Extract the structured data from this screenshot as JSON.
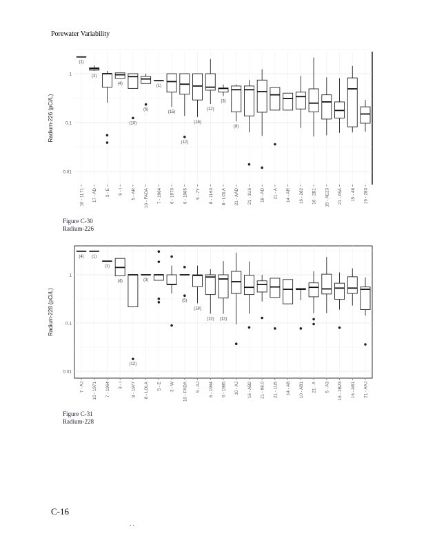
{
  "header": {
    "title": "Porewater Variability"
  },
  "figures": [
    {
      "number": "Figure C-30",
      "caption": "Radium-226"
    },
    {
      "number": "Figure C-31",
      "caption": "Radium-228"
    }
  ],
  "footer": {
    "page_number": "C-16",
    "marks": ". ."
  },
  "chart_data": [
    {
      "type": "box",
      "ylabel": "Radium-226 (pCi/L)",
      "yscale": "log",
      "ylim": [
        0.005,
        3
      ],
      "yticks": [
        "1",
        "0.1",
        "0.01"
      ],
      "grid": true,
      "categories": [
        "10 - 1L71",
        "17 - AD",
        "3 - E",
        "9 - I",
        "5 - AR",
        "10 - FADA",
        "7 - 1964",
        "6 - 1970",
        "6 - 1985",
        "5 - 7Y",
        "8 - 1L63",
        "8 - LOLA",
        "21 - AAD",
        "21 - 1U6",
        "18 - AD",
        "21 - A",
        "14 - AR",
        "16 - 282",
        "16 - 2B1",
        "15 - AE23",
        "21 - A5A",
        "15 - 48",
        "16 - 283"
      ],
      "boxes": [
        {
          "lo": 2.2,
          "q1": 2.2,
          "med": 2.2,
          "q3": 2.2,
          "hi": 2.2,
          "out": [],
          "n": "(1)"
        },
        {
          "lo": 1.14,
          "q1": 1.18,
          "med": 1.27,
          "q3": 1.32,
          "hi": 1.48,
          "out": [],
          "n": "(2)"
        },
        {
          "lo": 0.256,
          "q1": 0.53,
          "med": 1.0,
          "q3": 1.0,
          "hi": 1.14,
          "out": [
            0.055,
            0.039
          ],
          "n": ""
        },
        {
          "lo": 0.8,
          "q1": 0.8,
          "med": 0.95,
          "q3": 1.04,
          "hi": 1.04,
          "out": [],
          "n": "(4)"
        },
        {
          "lo": 0.5,
          "q1": 0.5,
          "med": 0.87,
          "q3": 1.0,
          "hi": 1.0,
          "out": [
            0.124
          ],
          "n": "(10)"
        },
        {
          "lo": 0.63,
          "q1": 0.63,
          "med": 0.78,
          "q3": 0.88,
          "hi": 1.0,
          "out": [
            0.235
          ],
          "n": "(5)"
        },
        {
          "lo": 0.72,
          "q1": 0.72,
          "med": 0.72,
          "q3": 0.72,
          "hi": 0.72,
          "out": [],
          "n": "(1)"
        },
        {
          "lo": 0.21,
          "q1": 0.42,
          "med": 0.69,
          "q3": 1.0,
          "hi": 1.0,
          "out": [],
          "n": "(15)"
        },
        {
          "lo": 0.137,
          "q1": 0.38,
          "med": 0.61,
          "q3": 1.0,
          "hi": 1.0,
          "out": [
            0.051
          ],
          "n": "(12)"
        },
        {
          "lo": 0.13,
          "q1": 0.29,
          "med": 0.56,
          "q3": 1.0,
          "hi": 1.0,
          "out": [],
          "n": "(18)"
        },
        {
          "lo": 0.24,
          "q1": 0.46,
          "med": 0.53,
          "q3": 1.0,
          "hi": 2.0,
          "out": [],
          "n": "(12)"
        },
        {
          "lo": 0.35,
          "q1": 0.42,
          "med": 0.5,
          "q3": 0.51,
          "hi": 0.6,
          "out": [],
          "n": "(3)"
        },
        {
          "lo": 0.106,
          "q1": 0.166,
          "med": 0.47,
          "q3": 0.56,
          "hi": 0.6,
          "out": [],
          "n": "(8)"
        },
        {
          "lo": 0.063,
          "q1": 0.137,
          "med": 0.47,
          "q3": 0.56,
          "hi": 0.74,
          "out": [
            0.014
          ],
          "n": ""
        },
        {
          "lo": 0.054,
          "q1": 0.163,
          "med": 0.43,
          "q3": 0.74,
          "hi": 1.23,
          "out": [
            0.012
          ],
          "n": ""
        },
        {
          "lo": 0.18,
          "q1": 0.18,
          "med": 0.37,
          "q3": 0.52,
          "hi": 0.52,
          "out": [
            0.036
          ],
          "n": ""
        },
        {
          "lo": 0.18,
          "q1": 0.18,
          "med": 0.31,
          "q3": 0.4,
          "hi": 0.4,
          "out": [],
          "n": ""
        },
        {
          "lo": 0.078,
          "q1": 0.19,
          "med": 0.34,
          "q3": 0.42,
          "hi": 0.9,
          "out": [],
          "n": ""
        },
        {
          "lo": 0.052,
          "q1": 0.166,
          "med": 0.25,
          "q3": 0.49,
          "hi": 2.13,
          "out": [],
          "n": ""
        },
        {
          "lo": 0.055,
          "q1": 0.118,
          "med": 0.265,
          "q3": 0.37,
          "hi": 0.84,
          "out": [],
          "n": ""
        },
        {
          "lo": 0.062,
          "q1": 0.124,
          "med": 0.177,
          "q3": 0.265,
          "hi": 0.81,
          "out": [],
          "n": ""
        },
        {
          "lo": 0.063,
          "q1": 0.082,
          "med": 0.49,
          "q3": 0.82,
          "hi": 1.44,
          "out": [],
          "n": ""
        },
        {
          "lo": 0.065,
          "q1": 0.097,
          "med": 0.15,
          "q3": 0.21,
          "hi": 0.29,
          "out": [],
          "n": ""
        }
      ]
    },
    {
      "type": "box",
      "ylabel": "Radium-228 (pCi/L)",
      "yscale": "log",
      "ylim": [
        0.008,
        3.5
      ],
      "yticks": [
        "1",
        "0.1",
        "0.01"
      ],
      "grid": true,
      "categories": [
        "7 - AJ",
        "10 - 1971",
        "7 - 1964",
        "3 - I",
        "8 - 1977",
        "8 - LOLA",
        "5 - E",
        "3 - W",
        "10 - FADA",
        "5 - AJ",
        "6 - 1964",
        "6 - 1985",
        "10 - AJ",
        "16 - AB2",
        "21 - 98.0",
        "21 - 1U5",
        "14 - A8",
        "10 - AB1",
        "21 - A",
        "5 - A3",
        "16 - 2B23",
        "16 - AB1",
        "21 - AAJ"
      ],
      "boxes": [
        {
          "lo": 3.08,
          "q1": 3.08,
          "med": 3.08,
          "q3": 3.08,
          "hi": 3.08,
          "out": [],
          "n": "(4)"
        },
        {
          "lo": 3.08,
          "q1": 3.08,
          "med": 3.08,
          "q3": 3.08,
          "hi": 3.08,
          "out": [],
          "n": "(1)"
        },
        {
          "lo": 1.92,
          "q1": 1.92,
          "med": 1.92,
          "q3": 1.92,
          "hi": 1.92,
          "out": [],
          "n": "(1)"
        },
        {
          "lo": 0.95,
          "q1": 0.95,
          "med": 1.42,
          "q3": 2.19,
          "hi": 2.19,
          "out": [],
          "n": "(4)"
        },
        {
          "lo": 0.217,
          "q1": 0.217,
          "med": 1.0,
          "q3": 1.0,
          "hi": 1.0,
          "out": [
            0.018
          ],
          "n": "(12)"
        },
        {
          "lo": 1.0,
          "q1": 1.0,
          "med": 1.0,
          "q3": 1.0,
          "hi": 1.0,
          "out": [],
          "n": "(3)"
        },
        {
          "lo": 0.77,
          "q1": 0.77,
          "med": 1.0,
          "q3": 1.0,
          "hi": 1.0,
          "out": [
            3.04,
            1.86,
            0.318,
            0.27
          ],
          "n": ""
        },
        {
          "lo": 0.41,
          "q1": 0.63,
          "med": 0.63,
          "q3": 1.0,
          "hi": 1.55,
          "out": [
            2.39,
            0.089
          ],
          "n": ""
        },
        {
          "lo": 1.0,
          "q1": 1.0,
          "med": 1.0,
          "q3": 1.0,
          "hi": 1.0,
          "out": [
            1.45,
            0.37
          ],
          "n": "(5)"
        },
        {
          "lo": 0.256,
          "q1": 0.57,
          "med": 0.97,
          "q3": 1.0,
          "hi": 1.55,
          "out": [],
          "n": "(18)"
        },
        {
          "lo": 0.156,
          "q1": 0.39,
          "med": 0.9,
          "q3": 1.0,
          "hi": 1.31,
          "out": [],
          "n": "(12)"
        },
        {
          "lo": 0.156,
          "q1": 0.33,
          "med": 0.82,
          "q3": 1.0,
          "hi": 1.92,
          "out": [],
          "n": "(12)"
        },
        {
          "lo": 0.094,
          "q1": 0.41,
          "med": 0.72,
          "q3": 1.18,
          "hi": 2.88,
          "out": [
            0.037
          ],
          "n": ""
        },
        {
          "lo": 0.156,
          "q1": 0.39,
          "med": 0.55,
          "q3": 0.98,
          "hi": 1.88,
          "out": [
            0.081
          ],
          "n": ""
        },
        {
          "lo": 0.28,
          "q1": 0.44,
          "med": 0.63,
          "q3": 0.75,
          "hi": 1.0,
          "out": [
            0.128
          ],
          "n": ""
        },
        {
          "lo": 0.34,
          "q1": 0.34,
          "med": 0.56,
          "q3": 0.85,
          "hi": 0.85,
          "out": [
            0.077
          ],
          "n": ""
        },
        {
          "lo": 0.25,
          "q1": 0.25,
          "med": 0.5,
          "q3": 0.8,
          "hi": 0.8,
          "out": [],
          "n": ""
        },
        {
          "lo": 0.3,
          "q1": 0.5,
          "med": 0.5,
          "q3": 0.52,
          "hi": 0.52,
          "out": [
            0.077
          ],
          "n": ""
        },
        {
          "lo": 0.16,
          "q1": 0.35,
          "med": 0.55,
          "q3": 0.68,
          "hi": 1.18,
          "out": [
            0.12,
            0.095
          ],
          "n": ""
        },
        {
          "lo": 0.16,
          "q1": 0.4,
          "med": 0.51,
          "q3": 1.03,
          "hi": 2.34,
          "out": [],
          "n": ""
        },
        {
          "lo": 0.19,
          "q1": 0.31,
          "med": 0.53,
          "q3": 0.67,
          "hi": 1.12,
          "out": [
            0.08
          ],
          "n": ""
        },
        {
          "lo": 0.23,
          "q1": 0.41,
          "med": 0.53,
          "q3": 0.91,
          "hi": 1.36,
          "out": [],
          "n": ""
        },
        {
          "lo": 0.143,
          "q1": 0.19,
          "med": 0.5,
          "q3": 0.56,
          "hi": 0.88,
          "out": [
            0.036
          ],
          "n": ""
        }
      ]
    }
  ]
}
